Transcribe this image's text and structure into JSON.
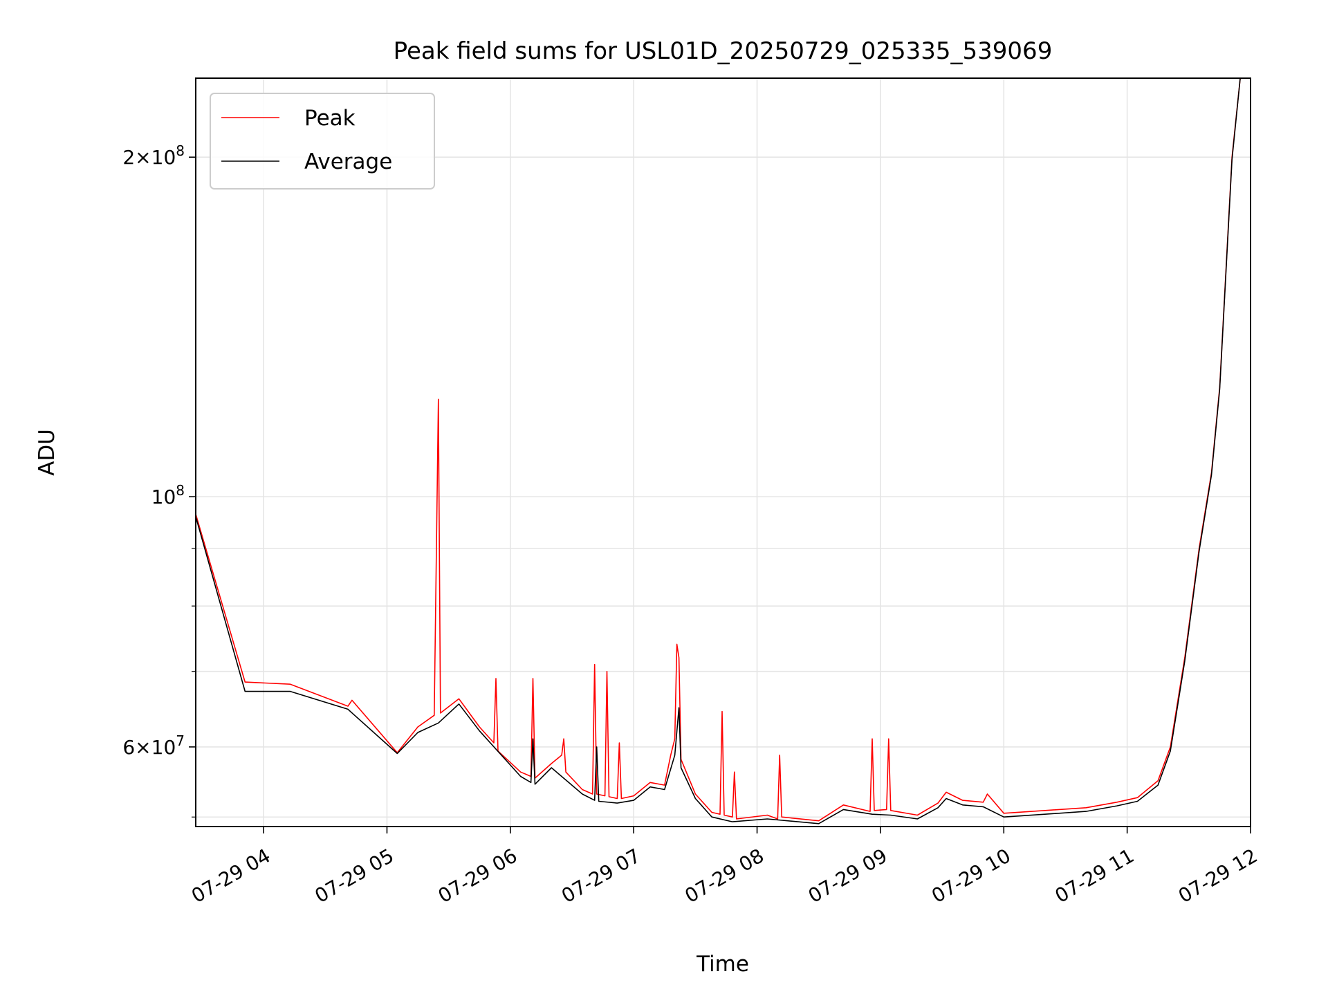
{
  "chart_data": {
    "type": "line",
    "title": "Peak field sums for USL01D_20250729_025335_539069",
    "xlabel": "Time",
    "ylabel": "ADU",
    "y_scale": "log",
    "grid": true,
    "legend_position": "top-left",
    "xlim": [
      "2025-07-29 03:27",
      "2025-07-29 12:00"
    ],
    "ylim": [
      51000000,
      235000000
    ],
    "x_ticks": [
      {
        "value": "2025-07-29 04:00",
        "label": "07-29 04"
      },
      {
        "value": "2025-07-29 05:00",
        "label": "07-29 05"
      },
      {
        "value": "2025-07-29 06:00",
        "label": "07-29 06"
      },
      {
        "value": "2025-07-29 07:00",
        "label": "07-29 07"
      },
      {
        "value": "2025-07-29 08:00",
        "label": "07-29 08"
      },
      {
        "value": "2025-07-29 09:00",
        "label": "07-29 09"
      },
      {
        "value": "2025-07-29 10:00",
        "label": "07-29 10"
      },
      {
        "value": "2025-07-29 11:00",
        "label": "07-29 11"
      },
      {
        "value": "2025-07-29 12:00",
        "label": "07-29 12"
      }
    ],
    "y_ticks": [
      {
        "value": 200000000,
        "mantissa": "2",
        "exponent": "8"
      },
      {
        "value": 100000000,
        "mantissa": "",
        "exponent": "8"
      },
      {
        "value": 60000000,
        "mantissa": "6",
        "exponent": "7"
      }
    ],
    "y_minor_ticks": [
      52000000,
      70000000,
      80000000,
      90000000
    ],
    "series": [
      {
        "name": "Peak",
        "color": "#ff0000",
        "points": [
          [
            "2025-07-29 03:27",
            96500000
          ],
          [
            "2025-07-29 03:51",
            68500000
          ],
          [
            "2025-07-29 04:13",
            68200000
          ],
          [
            "2025-07-29 04:41",
            65200000
          ],
          [
            "2025-07-29 04:43",
            66000000
          ],
          [
            "2025-07-29 05:05",
            59300000
          ],
          [
            "2025-07-29 05:15",
            62500000
          ],
          [
            "2025-07-29 05:23",
            64000000
          ],
          [
            "2025-07-29 05:25",
            122000000
          ],
          [
            "2025-07-29 05:26",
            64300000
          ],
          [
            "2025-07-29 05:35",
            66200000
          ],
          [
            "2025-07-29 05:45",
            62500000
          ],
          [
            "2025-07-29 05:52",
            60500000
          ],
          [
            "2025-07-29 05:53",
            69000000
          ],
          [
            "2025-07-29 05:54",
            59500000
          ],
          [
            "2025-07-29 06:05",
            57000000
          ],
          [
            "2025-07-29 06:10",
            56500000
          ],
          [
            "2025-07-29 06:11",
            69000000
          ],
          [
            "2025-07-29 06:12",
            56300000
          ],
          [
            "2025-07-29 06:20",
            58000000
          ],
          [
            "2025-07-29 06:25",
            59000000
          ],
          [
            "2025-07-29 06:26",
            61000000
          ],
          [
            "2025-07-29 06:27",
            57000000
          ],
          [
            "2025-07-29 06:35",
            55000000
          ],
          [
            "2025-07-29 06:40",
            54500000
          ],
          [
            "2025-07-29 06:41",
            71000000
          ],
          [
            "2025-07-29 06:42",
            54500000
          ],
          [
            "2025-07-29 06:46",
            54300000
          ],
          [
            "2025-07-29 06:47",
            70000000
          ],
          [
            "2025-07-29 06:48",
            54200000
          ],
          [
            "2025-07-29 06:52",
            54000000
          ],
          [
            "2025-07-29 06:53",
            60500000
          ],
          [
            "2025-07-29 06:54",
            54000000
          ],
          [
            "2025-07-29 07:00",
            54300000
          ],
          [
            "2025-07-29 07:08",
            55800000
          ],
          [
            "2025-07-29 07:15",
            55500000
          ],
          [
            "2025-07-29 07:18",
            59000000
          ],
          [
            "2025-07-29 07:20",
            61000000
          ],
          [
            "2025-07-29 07:21",
            74000000
          ],
          [
            "2025-07-29 07:22",
            72000000
          ],
          [
            "2025-07-29 07:23",
            58500000
          ],
          [
            "2025-07-29 07:30",
            54500000
          ],
          [
            "2025-07-29 07:38",
            52500000
          ],
          [
            "2025-07-29 07:42",
            52300000
          ],
          [
            "2025-07-29 07:43",
            64500000
          ],
          [
            "2025-07-29 07:44",
            52200000
          ],
          [
            "2025-07-29 07:48",
            52000000
          ],
          [
            "2025-07-29 07:49",
            57000000
          ],
          [
            "2025-07-29 07:50",
            51800000
          ],
          [
            "2025-07-29 08:05",
            52200000
          ],
          [
            "2025-07-29 08:10",
            51800000
          ],
          [
            "2025-07-29 08:11",
            59000000
          ],
          [
            "2025-07-29 08:12",
            52000000
          ],
          [
            "2025-07-29 08:30",
            51600000
          ],
          [
            "2025-07-29 08:42",
            53300000
          ],
          [
            "2025-07-29 08:55",
            52600000
          ],
          [
            "2025-07-29 08:56",
            61000000
          ],
          [
            "2025-07-29 08:57",
            52700000
          ],
          [
            "2025-07-29 09:03",
            52800000
          ],
          [
            "2025-07-29 09:04",
            61000000
          ],
          [
            "2025-07-29 09:05",
            52700000
          ],
          [
            "2025-07-29 09:18",
            52200000
          ],
          [
            "2025-07-29 09:28",
            53500000
          ],
          [
            "2025-07-29 09:32",
            54700000
          ],
          [
            "2025-07-29 09:40",
            53800000
          ],
          [
            "2025-07-29 09:50",
            53600000
          ],
          [
            "2025-07-29 09:52",
            54500000
          ],
          [
            "2025-07-29 10:00",
            52400000
          ],
          [
            "2025-07-29 10:20",
            52700000
          ],
          [
            "2025-07-29 10:40",
            53000000
          ],
          [
            "2025-07-29 10:55",
            53600000
          ],
          [
            "2025-07-29 11:05",
            54100000
          ],
          [
            "2025-07-29 11:15",
            56000000
          ],
          [
            "2025-07-29 11:21",
            60000000
          ],
          [
            "2025-07-29 11:28",
            72000000
          ],
          [
            "2025-07-29 11:35",
            90000000
          ],
          [
            "2025-07-29 11:41",
            105000000
          ],
          [
            "2025-07-29 11:45",
            125000000
          ],
          [
            "2025-07-29 11:51",
            200000000
          ],
          [
            "2025-07-29 11:55",
            235000000
          ]
        ]
      },
      {
        "name": "Average",
        "color": "#000000",
        "points": [
          [
            "2025-07-29 03:27",
            96000000
          ],
          [
            "2025-07-29 03:51",
            67200000
          ],
          [
            "2025-07-29 04:13",
            67200000
          ],
          [
            "2025-07-29 04:41",
            64800000
          ],
          [
            "2025-07-29 05:05",
            59200000
          ],
          [
            "2025-07-29 05:15",
            61800000
          ],
          [
            "2025-07-29 05:25",
            63000000
          ],
          [
            "2025-07-29 05:35",
            65500000
          ],
          [
            "2025-07-29 05:45",
            62000000
          ],
          [
            "2025-07-29 06:05",
            56500000
          ],
          [
            "2025-07-29 06:10",
            55800000
          ],
          [
            "2025-07-29 06:11",
            61000000
          ],
          [
            "2025-07-29 06:12",
            55600000
          ],
          [
            "2025-07-29 06:20",
            57500000
          ],
          [
            "2025-07-29 06:35",
            54500000
          ],
          [
            "2025-07-29 06:41",
            53800000
          ],
          [
            "2025-07-29 06:42",
            60000000
          ],
          [
            "2025-07-29 06:43",
            53700000
          ],
          [
            "2025-07-29 06:52",
            53500000
          ],
          [
            "2025-07-29 07:00",
            53800000
          ],
          [
            "2025-07-29 07:08",
            55300000
          ],
          [
            "2025-07-29 07:15",
            55000000
          ],
          [
            "2025-07-29 07:20",
            59000000
          ],
          [
            "2025-07-29 07:22",
            65000000
          ],
          [
            "2025-07-29 07:23",
            57500000
          ],
          [
            "2025-07-29 07:30",
            54000000
          ],
          [
            "2025-07-29 07:38",
            52000000
          ],
          [
            "2025-07-29 07:48",
            51500000
          ],
          [
            "2025-07-29 08:05",
            51800000
          ],
          [
            "2025-07-29 08:30",
            51300000
          ],
          [
            "2025-07-29 08:42",
            52800000
          ],
          [
            "2025-07-29 08:56",
            52300000
          ],
          [
            "2025-07-29 09:05",
            52200000
          ],
          [
            "2025-07-29 09:18",
            51800000
          ],
          [
            "2025-07-29 09:28",
            53000000
          ],
          [
            "2025-07-29 09:32",
            54000000
          ],
          [
            "2025-07-29 09:40",
            53300000
          ],
          [
            "2025-07-29 09:50",
            53100000
          ],
          [
            "2025-07-29 10:00",
            52000000
          ],
          [
            "2025-07-29 10:20",
            52300000
          ],
          [
            "2025-07-29 10:40",
            52600000
          ],
          [
            "2025-07-29 10:55",
            53200000
          ],
          [
            "2025-07-29 11:05",
            53700000
          ],
          [
            "2025-07-29 11:15",
            55500000
          ],
          [
            "2025-07-29 11:21",
            59500000
          ],
          [
            "2025-07-29 11:28",
            71500000
          ],
          [
            "2025-07-29 11:35",
            89500000
          ],
          [
            "2025-07-29 11:41",
            104500000
          ],
          [
            "2025-07-29 11:45",
            124500000
          ],
          [
            "2025-07-29 11:51",
            199000000
          ],
          [
            "2025-07-29 11:55",
            235000000
          ]
        ]
      }
    ]
  }
}
